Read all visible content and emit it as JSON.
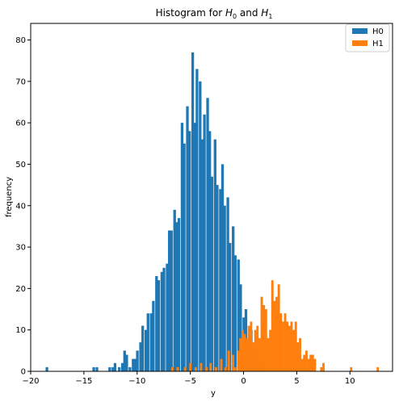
{
  "chart_data": {
    "type": "bar",
    "title": "Histogram for H₀ and H₁",
    "title_parts": {
      "prefix": "Histogram for ",
      "sym_a": "H",
      "sub_a": "0",
      "mid": " and ",
      "sym_b": "H",
      "sub_b": "1"
    },
    "xlabel": "y",
    "ylabel": "frequency",
    "xlim": [
      -20,
      14
    ],
    "ylim": [
      0,
      84
    ],
    "x_ticks": [
      -20,
      -15,
      -10,
      -5,
      0,
      5,
      10
    ],
    "y_ticks": [
      0,
      10,
      20,
      30,
      40,
      50,
      60,
      70,
      80
    ],
    "legend_position": "top-right",
    "grid": false,
    "series": [
      {
        "name": "H0",
        "color": "#1f77b4",
        "bin_width": 0.25,
        "bins": [
          [
            -18.6,
            1
          ],
          [
            -14.2,
            1
          ],
          [
            -13.9,
            1
          ],
          [
            -12.7,
            1
          ],
          [
            -12.4,
            1
          ],
          [
            -12.2,
            2
          ],
          [
            -11.8,
            1
          ],
          [
            -11.5,
            2
          ],
          [
            -11.3,
            5
          ],
          [
            -11.1,
            4
          ],
          [
            -10.8,
            1
          ],
          [
            -10.5,
            3
          ],
          [
            -10.3,
            3
          ],
          [
            -10.1,
            5
          ],
          [
            -9.8,
            7
          ],
          [
            -9.6,
            11
          ],
          [
            -9.3,
            10
          ],
          [
            -9.1,
            14
          ],
          [
            -8.8,
            14
          ],
          [
            -8.6,
            17
          ],
          [
            -8.3,
            23
          ],
          [
            -8.1,
            22
          ],
          [
            -7.8,
            24
          ],
          [
            -7.6,
            25
          ],
          [
            -7.3,
            26
          ],
          [
            -7.1,
            34
          ],
          [
            -6.9,
            34
          ],
          [
            -6.6,
            39
          ],
          [
            -6.4,
            36
          ],
          [
            -6.2,
            37
          ],
          [
            -5.9,
            60
          ],
          [
            -5.7,
            55
          ],
          [
            -5.4,
            64
          ],
          [
            -5.2,
            58
          ],
          [
            -4.9,
            77
          ],
          [
            -4.7,
            60
          ],
          [
            -4.5,
            73
          ],
          [
            -4.2,
            70
          ],
          [
            -4.0,
            56
          ],
          [
            -3.8,
            62
          ],
          [
            -3.5,
            66
          ],
          [
            -3.3,
            58
          ],
          [
            -3.1,
            47
          ],
          [
            -2.8,
            56
          ],
          [
            -2.6,
            45
          ],
          [
            -2.3,
            44
          ],
          [
            -2.1,
            50
          ],
          [
            -1.9,
            40
          ],
          [
            -1.6,
            42
          ],
          [
            -1.4,
            31
          ],
          [
            -1.1,
            35
          ],
          [
            -0.9,
            28
          ],
          [
            -0.6,
            27
          ],
          [
            -0.4,
            21
          ],
          [
            -0.1,
            13
          ],
          [
            0.1,
            15
          ],
          [
            0.4,
            8
          ],
          [
            0.6,
            10
          ],
          [
            0.9,
            6
          ],
          [
            1.1,
            4
          ],
          [
            1.4,
            3
          ],
          [
            1.6,
            2
          ],
          [
            1.9,
            1
          ],
          [
            2.1,
            1
          ]
        ]
      },
      {
        "name": "H1",
        "color": "#ff7f0e",
        "bin_width": 0.22,
        "bins": [
          [
            -6.8,
            1
          ],
          [
            -6.3,
            1
          ],
          [
            -5.6,
            1
          ],
          [
            -5.1,
            2
          ],
          [
            -4.6,
            1
          ],
          [
            -4.1,
            2
          ],
          [
            -3.6,
            1
          ],
          [
            -3.2,
            2
          ],
          [
            -2.7,
            1
          ],
          [
            -2.2,
            3
          ],
          [
            -1.8,
            1
          ],
          [
            -1.5,
            5
          ],
          [
            -1.1,
            4
          ],
          [
            -0.9,
            1
          ],
          [
            -0.6,
            5
          ],
          [
            -0.4,
            8
          ],
          [
            -0.2,
            10
          ],
          [
            0.0,
            9
          ],
          [
            0.2,
            8
          ],
          [
            0.4,
            11
          ],
          [
            0.6,
            12
          ],
          [
            0.8,
            7
          ],
          [
            1.0,
            10
          ],
          [
            1.2,
            11
          ],
          [
            1.4,
            8
          ],
          [
            1.6,
            18
          ],
          [
            1.8,
            16
          ],
          [
            2.0,
            15
          ],
          [
            2.2,
            8
          ],
          [
            2.4,
            10
          ],
          [
            2.6,
            22
          ],
          [
            2.8,
            17
          ],
          [
            3.0,
            18
          ],
          [
            3.2,
            21
          ],
          [
            3.4,
            14
          ],
          [
            3.6,
            12
          ],
          [
            3.8,
            14
          ],
          [
            4.0,
            12
          ],
          [
            4.2,
            11
          ],
          [
            4.4,
            12
          ],
          [
            4.6,
            10
          ],
          [
            4.8,
            12
          ],
          [
            5.0,
            7
          ],
          [
            5.2,
            8
          ],
          [
            5.4,
            3
          ],
          [
            5.6,
            4
          ],
          [
            5.8,
            5
          ],
          [
            6.0,
            3
          ],
          [
            6.2,
            4
          ],
          [
            6.4,
            4
          ],
          [
            6.6,
            3
          ],
          [
            7.2,
            1
          ],
          [
            7.4,
            2
          ],
          [
            10.0,
            1
          ],
          [
            12.5,
            1
          ]
        ]
      }
    ]
  }
}
